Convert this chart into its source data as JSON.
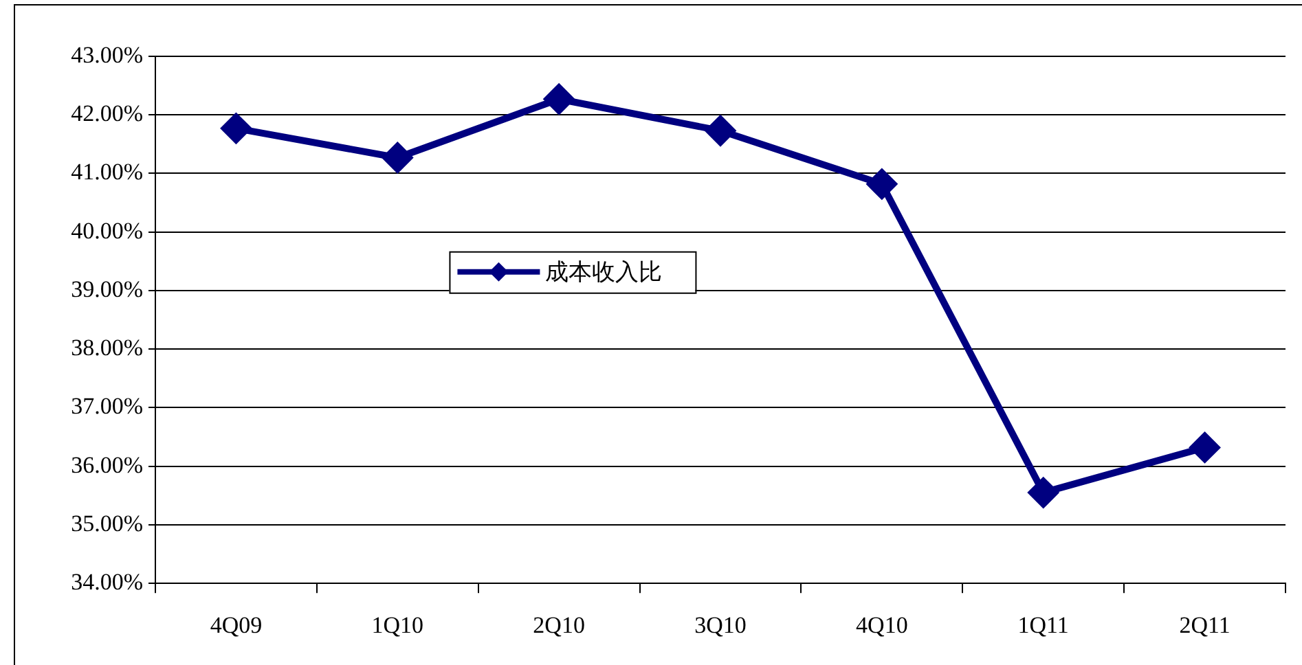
{
  "chart_data": {
    "type": "line",
    "categories": [
      "4Q09",
      "1Q10",
      "2Q10",
      "3Q10",
      "4Q10",
      "1Q11",
      "2Q11"
    ],
    "series": [
      {
        "name": "成本收入比",
        "color": "#000080",
        "values": [
          41.77,
          41.27,
          42.27,
          41.73,
          40.82,
          35.55,
          36.32
        ]
      }
    ],
    "ylim": [
      34,
      43
    ],
    "yticks": [
      {
        "value": 34,
        "label": "34.00%"
      },
      {
        "value": 35,
        "label": "35.00%"
      },
      {
        "value": 36,
        "label": "36.00%"
      },
      {
        "value": 37,
        "label": "37.00%"
      },
      {
        "value": 38,
        "label": "38.00%"
      },
      {
        "value": 39,
        "label": "39.00%"
      },
      {
        "value": 40,
        "label": "40.00%"
      },
      {
        "value": 41,
        "label": "41.00%"
      },
      {
        "value": 42,
        "label": "42.00%"
      },
      {
        "value": 43,
        "label": "43.00%"
      }
    ],
    "grid": "y",
    "legend": "center",
    "marker": "diamond",
    "line_style": "solid"
  }
}
